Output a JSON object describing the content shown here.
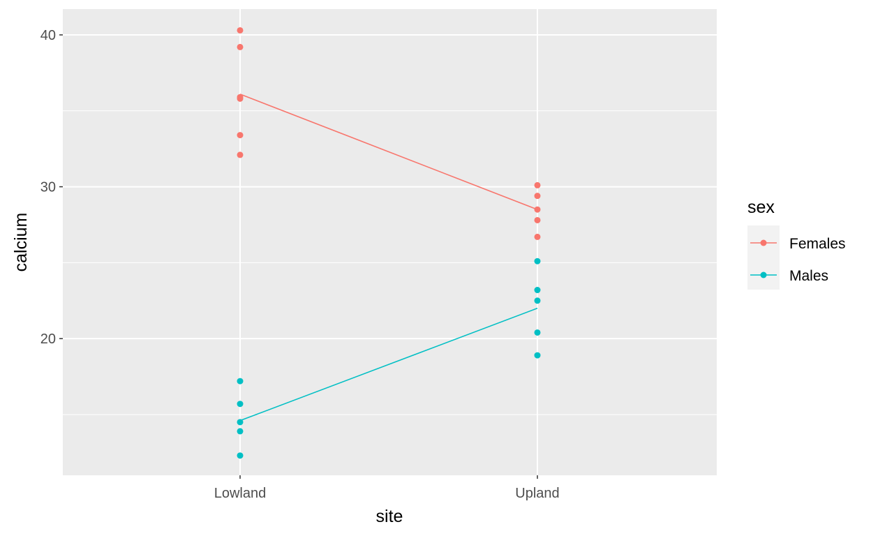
{
  "chart_data": {
    "type": "scatter",
    "title": "",
    "xlabel": "site",
    "ylabel": "calcium",
    "categories": [
      "Lowland",
      "Upland"
    ],
    "ylim": [
      11,
      41.7
    ],
    "yticks": [
      20,
      30,
      40
    ],
    "grid": true,
    "legend": {
      "title": "sex",
      "position": "right"
    },
    "series": [
      {
        "name": "Females",
        "color": "#F8766D",
        "points": [
          {
            "x": "Lowland",
            "y": 40.3
          },
          {
            "x": "Lowland",
            "y": 39.2
          },
          {
            "x": "Lowland",
            "y": 35.9
          },
          {
            "x": "Lowland",
            "y": 35.8
          },
          {
            "x": "Lowland",
            "y": 33.4
          },
          {
            "x": "Lowland",
            "y": 32.1
          },
          {
            "x": "Upland",
            "y": 30.1
          },
          {
            "x": "Upland",
            "y": 29.4
          },
          {
            "x": "Upland",
            "y": 28.5
          },
          {
            "x": "Upland",
            "y": 27.8
          },
          {
            "x": "Upland",
            "y": 26.7
          }
        ],
        "means": [
          {
            "x": "Lowland",
            "y": 36.1
          },
          {
            "x": "Upland",
            "y": 28.5
          }
        ]
      },
      {
        "name": "Males",
        "color": "#00BFC4",
        "points": [
          {
            "x": "Lowland",
            "y": 17.2
          },
          {
            "x": "Lowland",
            "y": 15.7
          },
          {
            "x": "Lowland",
            "y": 14.5
          },
          {
            "x": "Lowland",
            "y": 13.9
          },
          {
            "x": "Lowland",
            "y": 12.3
          },
          {
            "x": "Upland",
            "y": 25.1
          },
          {
            "x": "Upland",
            "y": 23.2
          },
          {
            "x": "Upland",
            "y": 22.5
          },
          {
            "x": "Upland",
            "y": 20.4
          },
          {
            "x": "Upland",
            "y": 18.9
          }
        ],
        "means": [
          {
            "x": "Lowland",
            "y": 14.6
          },
          {
            "x": "Upland",
            "y": 22.0
          }
        ]
      }
    ]
  }
}
